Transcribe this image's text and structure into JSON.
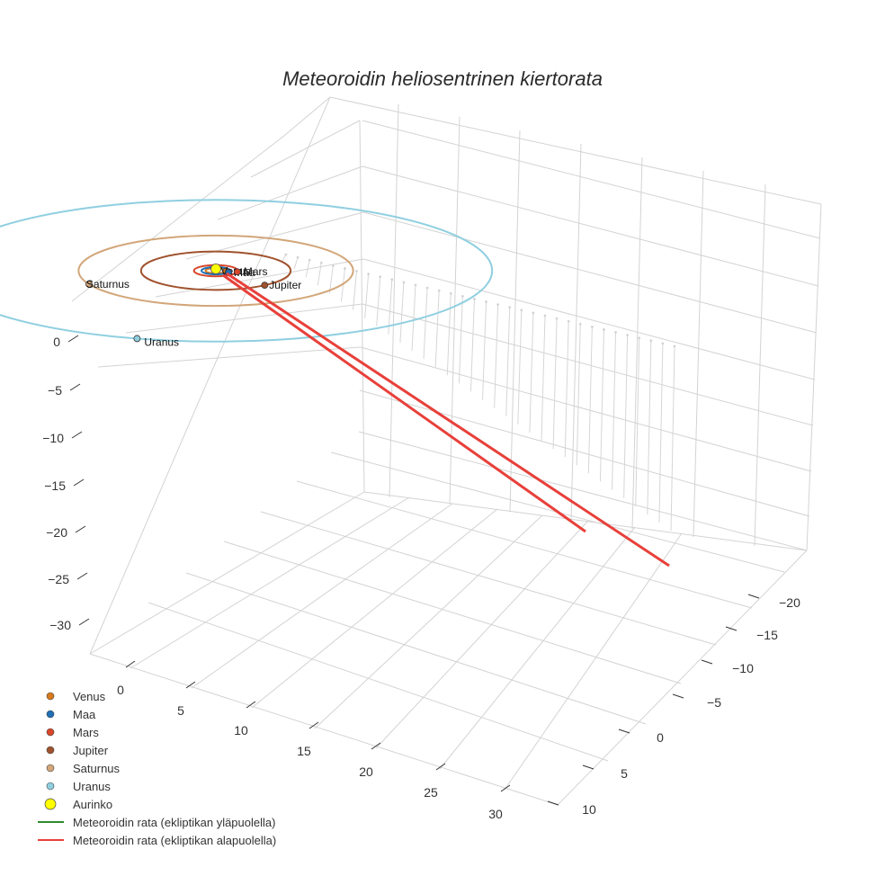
{
  "chart_data": {
    "type": "line",
    "title": "Meteoroidin heliosentrinen kiertorata",
    "axes": {
      "x": {
        "ticks": [
          0,
          5,
          10,
          15,
          20,
          25,
          30
        ]
      },
      "y": {
        "ticks": [
          -20,
          -15,
          -10,
          -5,
          0,
          5,
          10
        ]
      },
      "z": {
        "ticks": [
          0,
          -5,
          -10,
          -15,
          -20,
          -25,
          -30
        ]
      }
    },
    "planets": [
      {
        "name": "Venus",
        "color": "#d87a1c",
        "orbit_radius": 0.72
      },
      {
        "name": "Maa",
        "color": "#1f6fb5",
        "orbit_radius": 1.0
      },
      {
        "name": "Mars",
        "color": "#d8462a",
        "orbit_radius": 1.52
      },
      {
        "name": "Jupiter",
        "color": "#a0522d",
        "orbit_radius": 5.2
      },
      {
        "name": "Saturnus",
        "color": "#d2a679",
        "orbit_radius": 9.54
      },
      {
        "name": "Uranus",
        "color": "#8fcfe0",
        "orbit_radius": 19.2
      }
    ],
    "sun": {
      "name": "Aurinko",
      "color": "#ffff00"
    },
    "series": [
      {
        "name": "Meteoroidin rata (ekliptikan yläpuolella)",
        "color": "#2e8b2e"
      },
      {
        "name": "Meteoroidin rata (ekliptikan alapuolella)",
        "color": "#e8403a"
      }
    ],
    "legend_position": "bottom-left",
    "grid": true
  }
}
